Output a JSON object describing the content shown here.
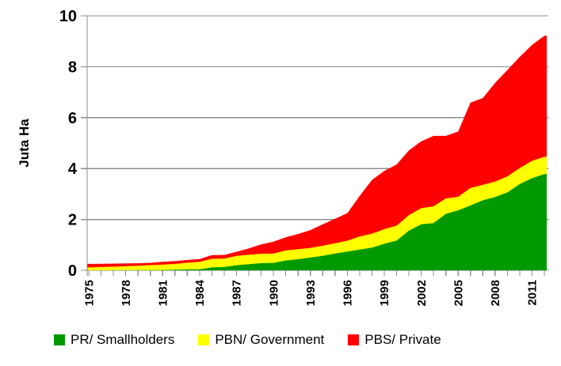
{
  "chart_data": {
    "type": "area",
    "stacked": true,
    "ylabel": "Juta Ha",
    "ylim": [
      0,
      10
    ],
    "yticks": [
      0,
      2,
      4,
      6,
      8,
      10
    ],
    "x_label_every": 3,
    "grid": "horizontal",
    "grid_color": "#8C8C8C",
    "x": [
      1975,
      1976,
      1977,
      1978,
      1979,
      1980,
      1981,
      1982,
      1983,
      1984,
      1985,
      1986,
      1987,
      1988,
      1989,
      1990,
      1991,
      1992,
      1993,
      1994,
      1995,
      1996,
      1997,
      1998,
      1999,
      2000,
      2001,
      2002,
      2003,
      2004,
      2005,
      2006,
      2007,
      2008,
      2009,
      2010,
      2011,
      2012
    ],
    "series": [
      {
        "name": "PR/ Smallholders",
        "color": "#009A00",
        "values": [
          0.003,
          0.004,
          0.004,
          0.005,
          0.005,
          0.006,
          0.011,
          0.026,
          0.037,
          0.041,
          0.119,
          0.13,
          0.203,
          0.239,
          0.284,
          0.291,
          0.384,
          0.439,
          0.502,
          0.572,
          0.659,
          0.739,
          0.813,
          0.89,
          1.042,
          1.167,
          1.561,
          1.808,
          1.854,
          2.22,
          2.357,
          2.549,
          2.752,
          2.882,
          3.061,
          3.387,
          3.622,
          3.778
        ]
      },
      {
        "name": "PBN/ Government",
        "color": "#FFFF00",
        "values": [
          0.11,
          0.125,
          0.14,
          0.155,
          0.175,
          0.2,
          0.214,
          0.224,
          0.262,
          0.29,
          0.335,
          0.333,
          0.366,
          0.373,
          0.367,
          0.372,
          0.395,
          0.389,
          0.38,
          0.395,
          0.405,
          0.426,
          0.518,
          0.55,
          0.577,
          0.588,
          0.61,
          0.632,
          0.662,
          0.605,
          0.53,
          0.687,
          0.606,
          0.603,
          0.63,
          0.631,
          0.678,
          0.683
        ]
      },
      {
        "name": "PBS/ Private",
        "color": "#FF0000",
        "values": [
          0.14,
          0.13,
          0.12,
          0.11,
          0.1,
          0.089,
          0.114,
          0.112,
          0.108,
          0.114,
          0.144,
          0.144,
          0.16,
          0.251,
          0.372,
          0.463,
          0.522,
          0.602,
          0.7,
          0.844,
          0.961,
          1.083,
          1.592,
          2.114,
          2.284,
          2.403,
          2.542,
          2.627,
          2.766,
          2.458,
          2.567,
          3.358,
          3.409,
          3.879,
          4.181,
          4.366,
          4.561,
          4.752
        ]
      }
    ],
    "legend_position": "bottom"
  }
}
